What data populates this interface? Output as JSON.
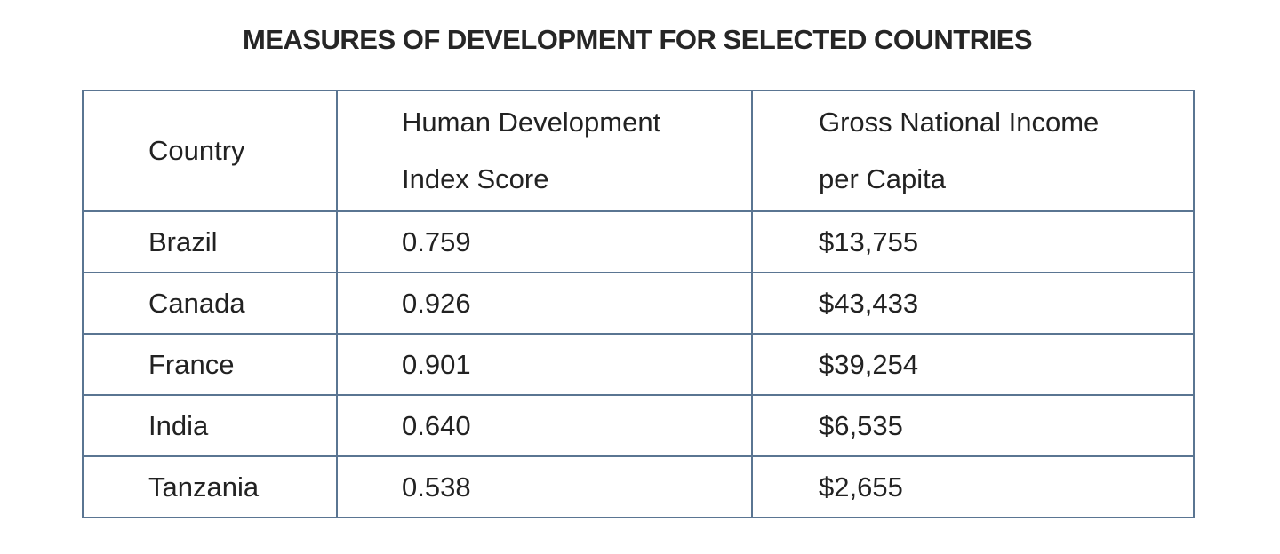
{
  "chart_data": {
    "type": "table",
    "title": "MEASURES OF DEVELOPMENT FOR SELECTED COUNTRIES",
    "columns": [
      "Country",
      "Human Development Index Score",
      "Gross National Income per Capita"
    ],
    "header_lines": [
      [
        "Country"
      ],
      [
        "Human Development",
        "Index Score"
      ],
      [
        "Gross National Income",
        "per Capita"
      ]
    ],
    "rows": [
      [
        "Brazil",
        "0.759",
        "$13,755"
      ],
      [
        "Canada",
        "0.926",
        "$43,433"
      ],
      [
        "France",
        "0.901",
        "$39,254"
      ],
      [
        "India",
        "0.640",
        "$6,535"
      ],
      [
        "Tanzania",
        "0.538",
        "$2,655"
      ]
    ]
  },
  "colors": {
    "border": "#5a7592",
    "text": "#222222",
    "title": "#262626",
    "background": "#ffffff"
  }
}
